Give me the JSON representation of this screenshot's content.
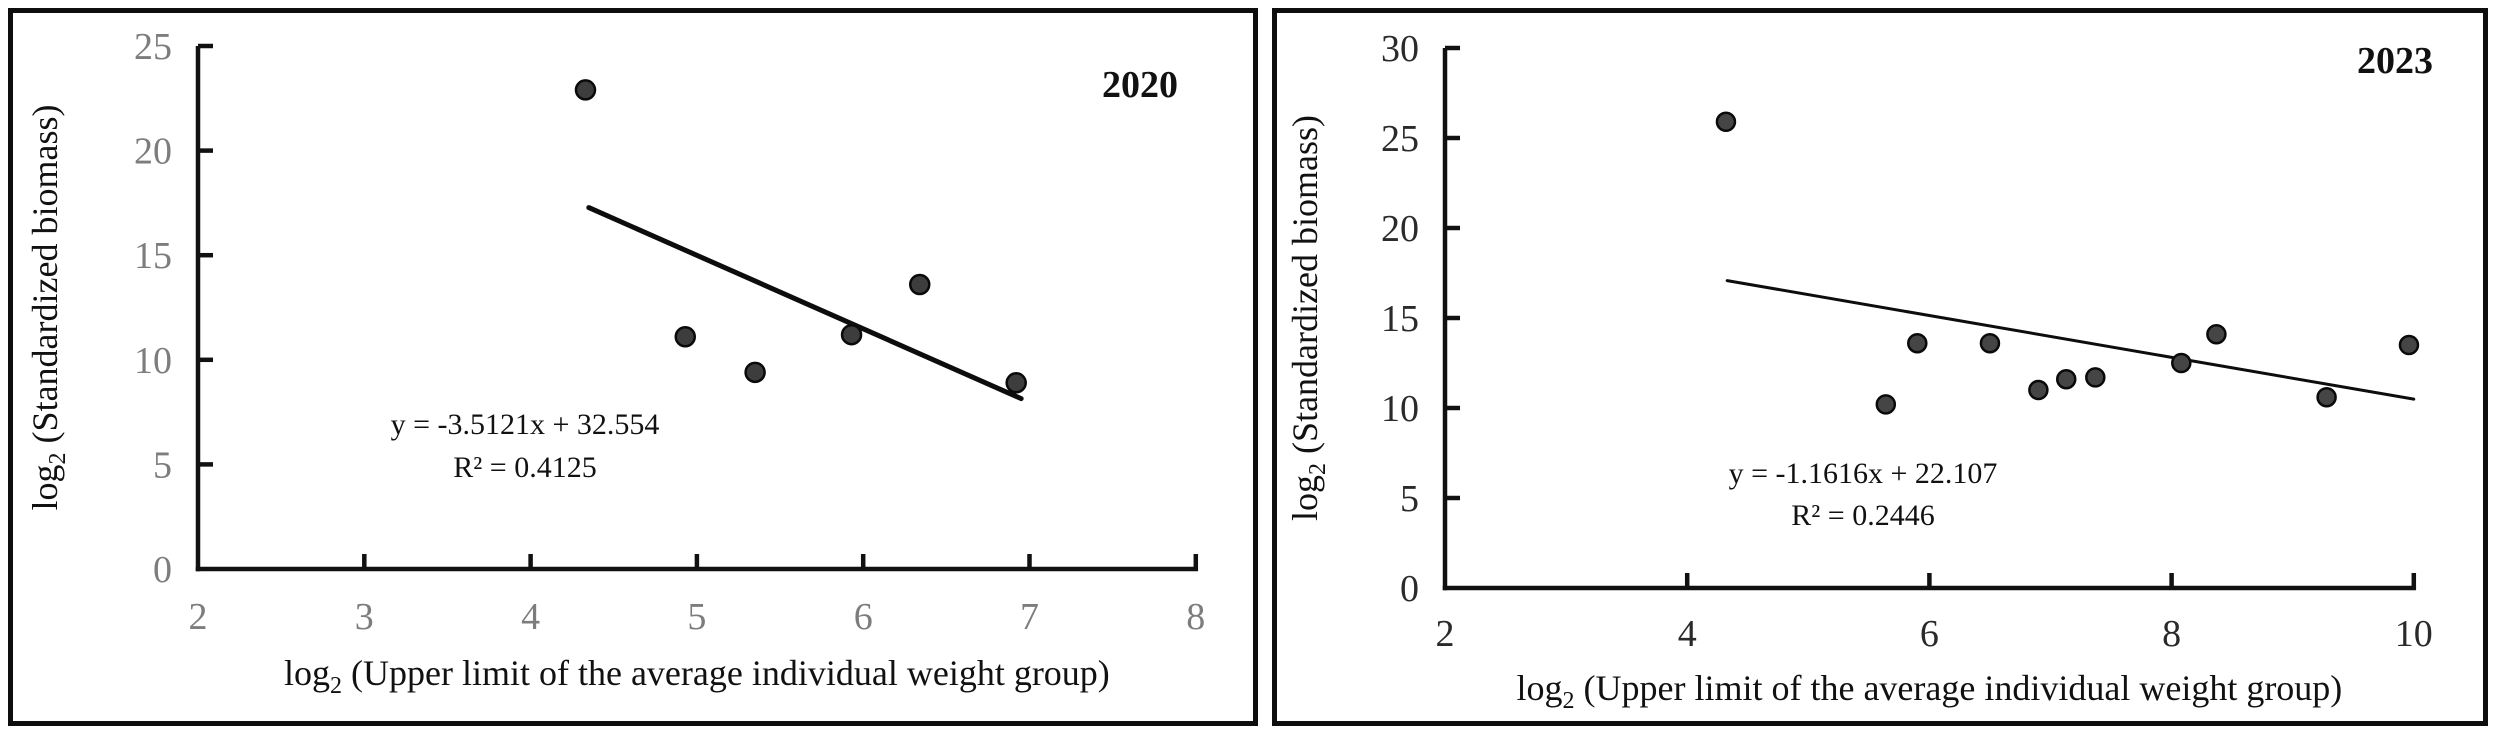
{
  "figure": {
    "description_colors": {
      "background": "#ffffff",
      "border": "#0e0e0e"
    }
  },
  "chart_data": [
    {
      "type": "scatter",
      "panel_label": "2020",
      "xlabel_parts": {
        "prefix": "log",
        "sub": "2",
        "rest": " (Upper limit of the average individual weight group)"
      },
      "ylabel_parts": {
        "prefix": "log",
        "sub": "2",
        "rest": " (Standardized biomass)"
      },
      "xlabel": "log2 (Upper limit of the average individual weight group)",
      "ylabel": "log2 (Standardized biomass)",
      "xlim": [
        2,
        8
      ],
      "ylim": [
        0,
        25
      ],
      "xticks": [
        2,
        3,
        4,
        5,
        6,
        7,
        8
      ],
      "yticks": [
        0,
        5,
        10,
        15,
        20,
        25
      ],
      "grid": false,
      "legend": false,
      "points": [
        [
          4.33,
          22.9
        ],
        [
          4.93,
          11.1
        ],
        [
          5.35,
          9.4
        ],
        [
          5.93,
          11.2
        ],
        [
          6.34,
          13.6
        ],
        [
          6.92,
          8.9
        ]
      ],
      "trendline": {
        "slope": -3.5121,
        "intercept": 32.554,
        "x_start": 4.35,
        "x_end": 6.95
      },
      "annotation": {
        "equation": "y = -3.5121x + 32.554",
        "r2": "R² = 0.4125"
      },
      "colors": {
        "point_fill": "#3d3d3d",
        "point_stroke": "#0a0a0a",
        "axis": "#111111",
        "tick_label": "#7d7d7d",
        "text": "#111111",
        "trend": "#0d0d0d"
      }
    },
    {
      "type": "scatter",
      "panel_label": "2023",
      "xlabel_parts": {
        "prefix": "log",
        "sub": "2",
        "rest": " (Upper limit of the average individual weight group)"
      },
      "ylabel_parts": {
        "prefix": "log",
        "sub": "2",
        "rest": " (Standardized biomass)"
      },
      "xlabel": "log2 (Upper limit of the average individual weight group)",
      "ylabel": "log2 (Standardized biomass)",
      "xlim": [
        2,
        10
      ],
      "ylim": [
        0,
        30
      ],
      "xticks": [
        2,
        4,
        6,
        8,
        10
      ],
      "yticks": [
        0,
        5,
        10,
        15,
        20,
        25,
        30
      ],
      "grid": false,
      "legend": false,
      "points": [
        [
          4.32,
          25.9
        ],
        [
          5.64,
          10.2
        ],
        [
          5.9,
          13.6
        ],
        [
          6.5,
          13.6
        ],
        [
          6.9,
          11.0
        ],
        [
          7.13,
          11.6
        ],
        [
          7.37,
          11.7
        ],
        [
          8.08,
          12.5
        ],
        [
          8.37,
          14.1
        ],
        [
          9.28,
          10.6
        ],
        [
          9.96,
          13.5
        ]
      ],
      "trendline": {
        "slope": -1.1616,
        "intercept": 22.107,
        "x_start": 4.33,
        "x_end": 10.0
      },
      "annotation": {
        "equation": "y = -1.1616x + 22.107",
        "r2": "R² = 0.2446"
      },
      "colors": {
        "point_fill": "#454545",
        "point_stroke": "#0a0a0a",
        "axis": "#111111",
        "tick_label": "#2a2a2a",
        "text": "#111111",
        "trend": "#0d0d0d"
      }
    }
  ]
}
